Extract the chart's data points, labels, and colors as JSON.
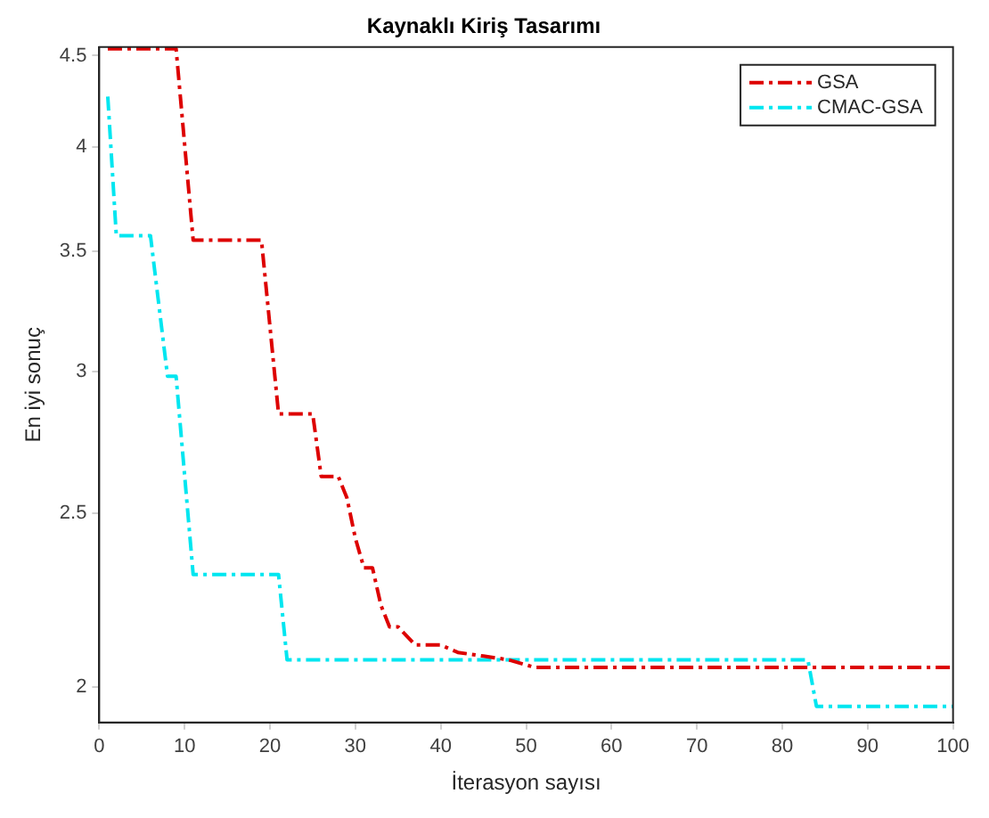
{
  "chart_data": {
    "type": "line",
    "title": "Kaynaklı Kiriş Tasarımı",
    "xlabel": "İterasyon sayısı",
    "ylabel": "En iyi sonuç",
    "log": "y",
    "xlim": [
      0,
      100
    ],
    "xticks": [
      0,
      10,
      20,
      30,
      40,
      50,
      60,
      70,
      80,
      90,
      100
    ],
    "ylim": [
      1.91,
      4.55
    ],
    "yticks": [
      {
        "value": 2,
        "label": "2"
      },
      {
        "value": 2.5,
        "label": "2.5"
      },
      {
        "value": 3,
        "label": "3"
      },
      {
        "value": 3.5,
        "label": "3.5"
      },
      {
        "value": 4,
        "label": "4"
      },
      {
        "value": 4.5,
        "label": "4.5"
      }
    ],
    "grid": false,
    "legend": "top right",
    "line_style": "dashed",
    "marker": "none",
    "series": [
      {
        "name": "GSA",
        "color": "#dd0000",
        "x": [
          1,
          9,
          11,
          19,
          21,
          25,
          26,
          28,
          29,
          30,
          31,
          32,
          33,
          34,
          35,
          37,
          40,
          42,
          45,
          48,
          51,
          100
        ],
        "values": [
          4.54,
          4.54,
          3.55,
          3.55,
          2.84,
          2.84,
          2.62,
          2.62,
          2.55,
          2.42,
          2.33,
          2.33,
          2.22,
          2.16,
          2.16,
          2.11,
          2.11,
          2.09,
          2.08,
          2.07,
          2.05,
          2.05
        ]
      },
      {
        "name": "CMAC-GSA",
        "color": "#00e6f0",
        "x": [
          1,
          2,
          6,
          8,
          9,
          11,
          21,
          22,
          83,
          84,
          100
        ],
        "values": [
          4.27,
          3.57,
          3.57,
          2.98,
          2.98,
          2.31,
          2.31,
          2.07,
          2.07,
          1.95,
          1.95
        ]
      }
    ]
  }
}
